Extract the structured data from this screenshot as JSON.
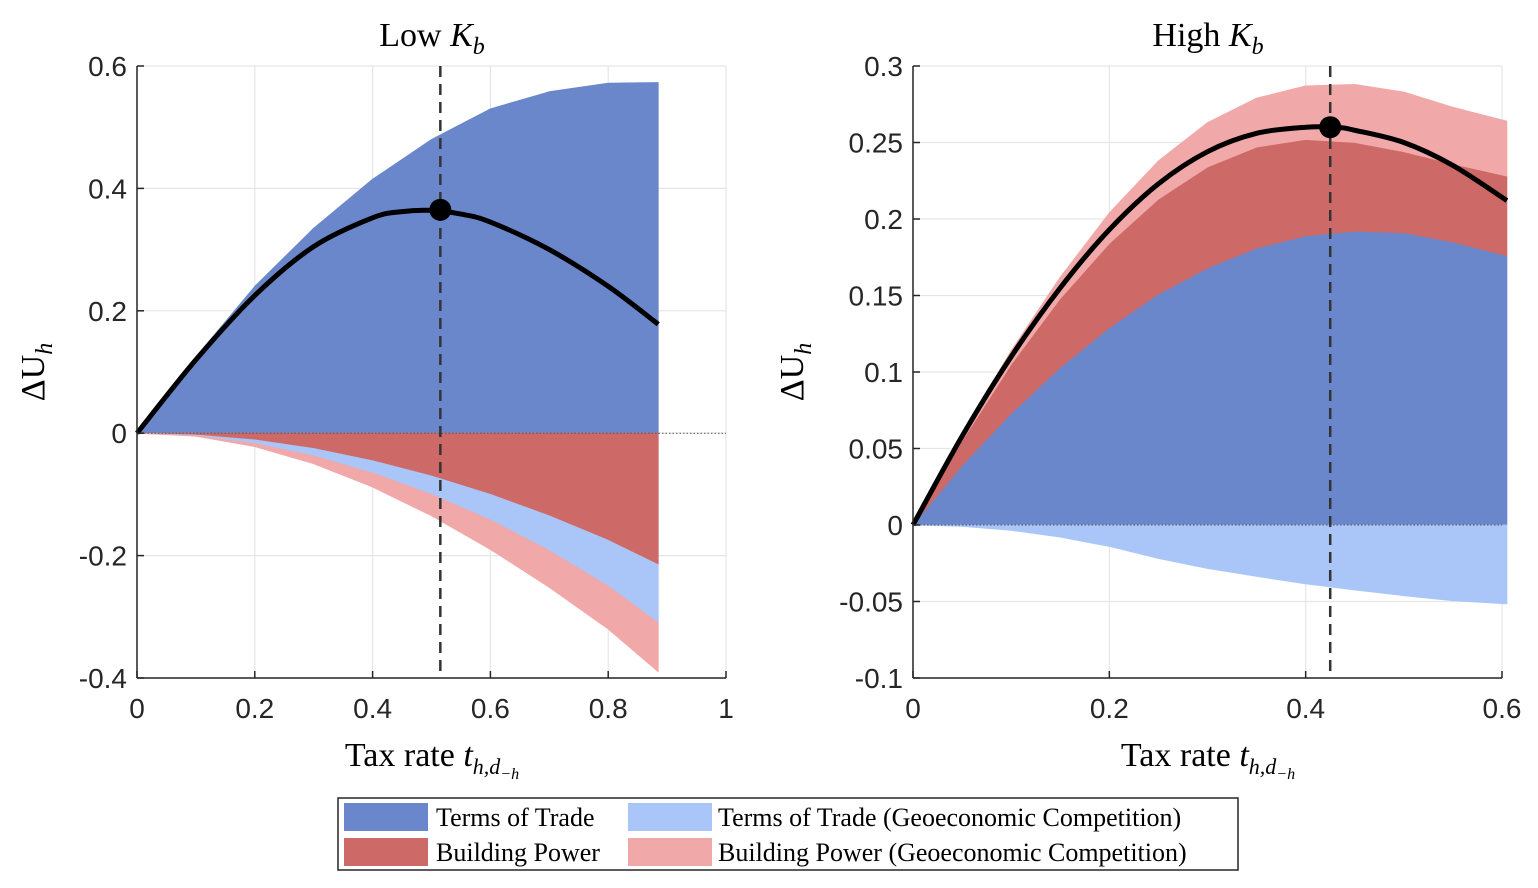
{
  "colors": {
    "terms_of_trade": "#6b87cb",
    "tot_geo": "#aac5f7",
    "building_power": "#cd6a68",
    "bp_geo": "#f1a8a8",
    "curve": "#000000",
    "grid": "#e6e6e6",
    "axis": "#262626"
  },
  "chart_data": [
    {
      "type": "area",
      "title": "Low ",
      "title_var": "K",
      "title_sub": "b",
      "xlabel": "Tax rate ",
      "xlabel_var": "t",
      "xlabel_sub": "h,d",
      "xlabel_subsub": "−h",
      "ylabel": "ΔU",
      "ylabel_sub": "h",
      "xlim": [
        0,
        1
      ],
      "ylim": [
        -0.4,
        0.6
      ],
      "xticks": [
        0,
        0.2,
        0.4,
        0.6,
        0.8,
        1
      ],
      "xtick_labels": [
        "0",
        "0.2",
        "0.4",
        "0.6",
        "0.8",
        "1"
      ],
      "yticks": [
        -0.4,
        -0.2,
        0,
        0.2,
        0.4,
        0.6
      ],
      "ytick_labels": [
        "-0.4",
        "-0.2",
        "0",
        "0.2",
        "0.4",
        "0.6"
      ],
      "x": [
        0,
        0.1,
        0.2,
        0.3,
        0.4,
        0.5,
        0.6,
        0.7,
        0.8,
        0.885
      ],
      "series": [
        {
          "name": "Terms of Trade",
          "key": "terms_of_trade",
          "lower": [
            0,
            0,
            0,
            0,
            0,
            0,
            0,
            0,
            0,
            0
          ],
          "upper": [
            0,
            0.125,
            0.24,
            0.335,
            0.415,
            0.48,
            0.53,
            0.558,
            0.572,
            0.573
          ]
        },
        {
          "name": "Building Power",
          "key": "building_power",
          "lower": [
            0,
            -0.003,
            -0.011,
            -0.025,
            -0.045,
            -0.07,
            -0.1,
            -0.135,
            -0.175,
            -0.215
          ],
          "upper": [
            0,
            0,
            0,
            0,
            0,
            0,
            0,
            0,
            0,
            0
          ]
        },
        {
          "name": "Terms of Trade (Geoeconomic Competition)",
          "key": "tot_geo",
          "lower": [
            0,
            -0.004,
            -0.017,
            -0.037,
            -0.065,
            -0.1,
            -0.142,
            -0.192,
            -0.25,
            -0.31
          ],
          "upper": [
            0,
            -0.003,
            -0.011,
            -0.025,
            -0.045,
            -0.07,
            -0.1,
            -0.135,
            -0.175,
            -0.215
          ]
        },
        {
          "name": "Building Power (Geoeconomic Competition)",
          "key": "bp_geo",
          "lower": [
            0,
            -0.005,
            -0.022,
            -0.05,
            -0.088,
            -0.135,
            -0.19,
            -0.252,
            -0.32,
            -0.39
          ],
          "upper": [
            0,
            -0.004,
            -0.017,
            -0.037,
            -0.065,
            -0.1,
            -0.142,
            -0.192,
            -0.25,
            -0.31
          ]
        }
      ],
      "net_curve": {
        "x": [
          0,
          0.1,
          0.2,
          0.3,
          0.4,
          0.45,
          0.5,
          0.55,
          0.6,
          0.7,
          0.8,
          0.885
        ],
        "y": [
          0,
          0.12,
          0.225,
          0.305,
          0.352,
          0.362,
          0.364,
          0.358,
          0.345,
          0.3,
          0.24,
          0.178
        ]
      },
      "optimum": {
        "x": 0.515,
        "y": 0.365
      },
      "vline_x": 0.515
    },
    {
      "type": "area",
      "title": "High ",
      "title_var": "K",
      "title_sub": "b",
      "xlabel": "Tax rate ",
      "xlabel_var": "t",
      "xlabel_sub": "h,d",
      "xlabel_subsub": "−h",
      "ylabel": "ΔU",
      "ylabel_sub": "h",
      "xlim": [
        0,
        0.6
      ],
      "ylim": [
        -0.1,
        0.3
      ],
      "xticks": [
        0,
        0.2,
        0.4,
        0.6
      ],
      "xtick_labels": [
        "0",
        "0.2",
        "0.4",
        "0.6"
      ],
      "yticks": [
        -0.1,
        -0.05,
        0,
        0.05,
        0.1,
        0.15,
        0.2,
        0.25,
        0.3
      ],
      "ytick_labels": [
        "-0.1",
        "-0.05",
        "0",
        "0.05",
        "0.1",
        "0.15",
        "0.2",
        "0.25",
        "0.3"
      ],
      "x": [
        0,
        0.05,
        0.1,
        0.15,
        0.2,
        0.25,
        0.3,
        0.35,
        0.4,
        0.45,
        0.5,
        0.55,
        0.605
      ],
      "series": [
        {
          "name": "Terms of Trade",
          "key": "terms_of_trade",
          "lower": [
            0,
            0,
            0,
            0,
            0,
            0,
            0,
            0,
            0,
            0,
            0,
            0,
            0
          ],
          "upper": [
            0,
            0.039,
            0.073,
            0.103,
            0.129,
            0.151,
            0.168,
            0.181,
            0.189,
            0.192,
            0.191,
            0.185,
            0.176
          ]
        },
        {
          "name": "Building Power",
          "key": "building_power",
          "lower": [
            0,
            0.039,
            0.073,
            0.103,
            0.129,
            0.151,
            0.168,
            0.181,
            0.189,
            0.192,
            0.191,
            0.185,
            0.176
          ],
          "upper": [
            0,
            0.055,
            0.105,
            0.148,
            0.184,
            0.213,
            0.234,
            0.247,
            0.252,
            0.25,
            0.244,
            0.236,
            0.228
          ]
        },
        {
          "name": "Building Power (Geoeconomic Competition)",
          "key": "bp_geo",
          "lower": [
            0,
            0.055,
            0.105,
            0.148,
            0.184,
            0.213,
            0.234,
            0.247,
            0.252,
            0.25,
            0.244,
            0.236,
            0.228
          ],
          "upper": [
            0,
            0.06,
            0.114,
            0.162,
            0.204,
            0.238,
            0.263,
            0.279,
            0.287,
            0.288,
            0.283,
            0.273,
            0.264
          ]
        },
        {
          "name": "Terms of Trade (Geoeconomic Competition)",
          "key": "tot_geo",
          "lower": [
            0,
            -0.0006,
            -0.0022,
            -0.005,
            -0.0088,
            -0.0138,
            -0.0198,
            -0.027,
            -0.0352,
            -0.0446,
            -0.0552,
            -0.0668,
            -0.051
          ],
          "upper": [
            0,
            0,
            0,
            0,
            0,
            0,
            0,
            0,
            0,
            0,
            0,
            0,
            0
          ]
        }
      ],
      "tot_geo_lower_override": [
        0,
        -0.0009,
        -0.0035,
        -0.0079,
        -0.014,
        -0.0219,
        -0.0284,
        -0.0336,
        -0.0385,
        -0.0425,
        -0.0462,
        -0.0495,
        -0.0515
      ],
      "net_curve": {
        "x": [
          0,
          0.05,
          0.1,
          0.15,
          0.2,
          0.25,
          0.3,
          0.35,
          0.4,
          0.43,
          0.45,
          0.5,
          0.55,
          0.605
        ],
        "y": [
          0,
          0.058,
          0.11,
          0.155,
          0.193,
          0.223,
          0.244,
          0.256,
          0.26,
          0.26,
          0.258,
          0.25,
          0.235,
          0.212
        ]
      },
      "optimum": {
        "x": 0.425,
        "y": 0.26
      },
      "vline_x": 0.425
    }
  ],
  "legend": {
    "items": [
      {
        "key": "terms_of_trade",
        "label": "Terms of Trade"
      },
      {
        "key": "tot_geo",
        "label": "Terms of Trade (Geoeconomic Competition)"
      },
      {
        "key": "building_power",
        "label": "Building Power"
      },
      {
        "key": "bp_geo",
        "label": "Building Power (Geoeconomic Competition)"
      }
    ]
  }
}
